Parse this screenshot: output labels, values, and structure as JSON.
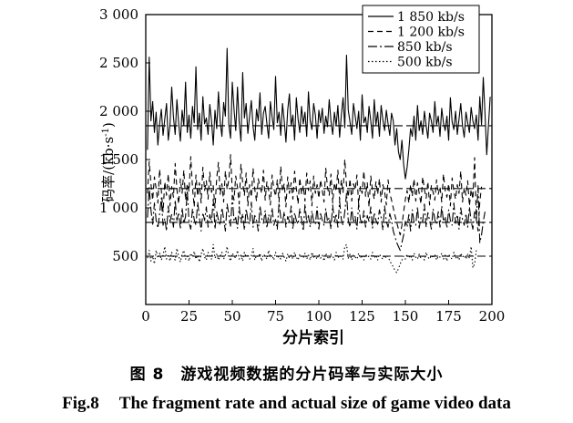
{
  "chart_data": {
    "type": "line",
    "xlabel": "分片索引",
    "ylabel": "码率/(kb·s",
    "ylabel_sup": "-1",
    "ylabel_close": ")",
    "xlim": [
      0,
      200
    ],
    "ylim": [
      0,
      3000
    ],
    "xticks": [
      0,
      25,
      50,
      75,
      100,
      125,
      150,
      175,
      200
    ],
    "yticks": [
      500,
      1000,
      1500,
      2000,
      2500,
      3000
    ],
    "ytick_labels": [
      "500",
      "1 000",
      "1 500",
      "2 000",
      "2 500",
      "3 000"
    ],
    "grid": false,
    "legend_position": "top-right",
    "series": [
      {
        "name": "1 850 kb/s",
        "dash": "solid",
        "mean": 1850,
        "amp": 300,
        "values": [
          1600,
          2560,
          1900,
          2100,
          1780,
          1990,
          1650,
          1870,
          2020,
          1750,
          1920,
          2080,
          1700,
          1860,
          2250,
          1940,
          1760,
          2120,
          1880,
          1690,
          2010,
          1850,
          2300,
          1780,
          1960,
          1720,
          2050,
          1880,
          2460,
          1810,
          1980,
          1700,
          2150,
          1870,
          1930,
          1760,
          2070,
          1900,
          1650,
          2010,
          1820,
          2200,
          1890,
          1740,
          2090,
          1950,
          2650,
          1860,
          1720,
          2300,
          2020,
          1800,
          2250,
          1880,
          1690,
          2400,
          1930,
          2080,
          1770,
          1950,
          2110,
          1840,
          1700,
          2020,
          1900,
          2190,
          1760,
          1980,
          2050,
          1870,
          1720,
          2100,
          1940,
          1810,
          2360,
          1880,
          1990,
          1750,
          2080,
          1900,
          1680,
          2010,
          2180,
          1850,
          1960,
          1700,
          2140,
          1920,
          1780,
          2050,
          1870,
          1990,
          1740,
          2200,
          1900,
          1810,
          2080,
          1960,
          1720,
          2010,
          1880,
          2030,
          1770,
          1950,
          1840,
          2120,
          1900,
          1760,
          1990,
          1850,
          2060,
          1730,
          1960,
          2140,
          1830,
          2580,
          2010,
          1890,
          1760,
          2080,
          1950,
          1820,
          2000,
          1700,
          2170,
          1880,
          1940,
          1780,
          2050,
          1900,
          1720,
          2120,
          1860,
          1990,
          1740,
          2060,
          1910,
          1800,
          2010,
          1870,
          1750,
          1980,
          1900,
          1650,
          1820,
          1580,
          1500,
          1700,
          1450,
          1300,
          1420,
          1600,
          1820,
          1740,
          1950,
          1700,
          2060,
          1800,
          1900,
          1760,
          2000,
          1850,
          1720,
          1980,
          1900,
          1780,
          2100,
          1860,
          1950,
          1740,
          2030,
          1880,
          1800,
          1950,
          1700,
          2140,
          1890,
          1810,
          2000,
          1760,
          1920,
          2080,
          1850,
          1730,
          1990,
          1880,
          1780,
          2040,
          1900,
          1820,
          1960,
          1700,
          2150,
          1860,
          2350,
          1980,
          1550,
          1850,
          2150
        ]
      },
      {
        "name": "1 200 kb/s",
        "dash": "6,4",
        "mean": 1200,
        "amp": 250,
        "values": [
          1150,
          1480,
          1250,
          1080,
          1320,
          1200,
          1050,
          1400,
          1180,
          960,
          1270,
          1130,
          1350,
          1020,
          1220,
          1110,
          1460,
          1190,
          1040,
          1300,
          1150,
          1390,
          1080,
          1250,
          1170,
          1530,
          1210,
          1010,
          1340,
          1120,
          1260,
          1050,
          1420,
          1180,
          1280,
          1090,
          1370,
          1160,
          1230,
          1000,
          1310,
          1470,
          1140,
          1250,
          1060,
          1380,
          1190,
          1290,
          1550,
          1170,
          1080,
          1330,
          1210,
          1040,
          1450,
          1260,
          1130,
          1360,
          1020,
          1240,
          1110,
          1410,
          1190,
          1070,
          1300,
          1220,
          1150,
          1390,
          1080,
          1270,
          1180,
          1030,
          1340,
          1200,
          1120,
          1290,
          1060,
          1430,
          1170,
          1250,
          1010,
          1320,
          1150,
          1260,
          1090,
          1380,
          1200,
          1040,
          1310,
          1140,
          1230,
          1070,
          1360,
          1180,
          1280,
          1020,
          1330,
          1150,
          1240,
          1100,
          1290,
          1180,
          1060,
          1410,
          1210,
          1130,
          1350,
          1050,
          1260,
          1170,
          1390,
          1080,
          1290,
          1160,
          1500,
          1230,
          1110,
          1300,
          1070,
          1250,
          1190,
          1340,
          1040,
          1220,
          1150,
          1380,
          1120,
          1260,
          1010,
          1330,
          1180,
          1090,
          1270,
          1140,
          1300,
          1060,
          1240,
          1170,
          1030,
          1290,
          1150,
          1080,
          1000,
          920,
          850,
          780,
          720,
          820,
          960,
          1090,
          1180,
          1050,
          1240,
          1120,
          1300,
          1070,
          1260,
          1150,
          1040,
          1320,
          1190,
          1100,
          1270,
          1030,
          1230,
          1160,
          1080,
          1290,
          1140,
          1220,
          1060,
          1350,
          1180,
          1110,
          1250,
          1020,
          1310,
          1170,
          1090,
          1240,
          1150,
          1380,
          1060,
          1210,
          1130,
          1280,
          1020,
          1190,
          1090,
          1520,
          880,
          760,
          1060,
          1220
        ]
      },
      {
        "name": "850 kb/s",
        "dash": "10,3,2,3",
        "mean": 850,
        "amp": 180,
        "values": [
          900,
          1210,
          980,
          830,
          1050,
          870,
          790,
          940,
          1100,
          820,
          890,
          760,
          1020,
          860,
          930,
          800,
          1080,
          870,
          950,
          780,
          1000,
          840,
          910,
          1180,
          850,
          780,
          990,
          880,
          820,
          1060,
          900,
          760,
          950,
          870,
          1010,
          800,
          930,
          850,
          1090,
          780,
          960,
          870,
          820,
          1000,
          890,
          760,
          1040,
          930,
          810,
          1130,
          860,
          900,
          790,
          1010,
          850,
          940,
          770,
          990,
          880,
          830,
          1060,
          800,
          920,
          870,
          760,
          1020,
          890,
          840,
          970,
          790,
          930,
          860,
          1000,
          820,
          880,
          780,
          1050,
          900,
          840,
          960,
          800,
          910,
          860,
          1020,
          780,
          950,
          870,
          830,
          990,
          880,
          760,
          1040,
          850,
          920,
          800,
          970,
          860,
          830,
          1010,
          780,
          940,
          870,
          820,
          990,
          860,
          900,
          780,
          1030,
          850,
          940,
          800,
          1070,
          880,
          820,
          960,
          1150,
          870,
          800,
          1000,
          850,
          910,
          780,
          1040,
          880,
          830,
          970,
          800,
          920,
          860,
          1010,
          790,
          950,
          870,
          830,
          980,
          900,
          770,
          1020,
          860,
          800,
          940,
          870,
          760,
          700,
          640,
          600,
          560,
          640,
          720,
          860,
          800,
          930,
          760,
          980,
          850,
          820,
          1010,
          790,
          900,
          860,
          1040,
          800,
          950,
          870,
          780,
          990,
          880,
          830,
          960,
          800,
          1020,
          860,
          910,
          790,
          980,
          870,
          820,
          1050,
          840,
          930,
          780,
          1000,
          880,
          820,
          940,
          800,
          1010,
          860,
          780,
          960,
          870,
          1230,
          640,
          720,
          860,
          960
        ]
      },
      {
        "name": "500 kb/s",
        "dash": "1.5,2.5",
        "mean": 500,
        "amp": 100,
        "values": [
          480,
          560,
          450,
          500,
          420,
          560,
          480,
          530,
          460,
          510,
          600,
          470,
          520,
          450,
          540,
          490,
          460,
          580,
          500,
          440,
          520,
          560,
          470,
          500,
          450,
          530,
          490,
          550,
          470,
          510,
          440,
          520,
          580,
          490,
          460,
          540,
          500,
          470,
          620,
          480,
          520,
          460,
          500,
          540,
          470,
          510,
          600,
          490,
          450,
          530,
          500,
          480,
          560,
          470,
          510,
          450,
          540,
          490,
          520,
          470,
          500,
          580,
          460,
          510,
          490,
          530,
          450,
          520,
          500,
          470,
          560,
          490,
          510,
          460,
          540,
          480,
          500,
          470,
          530,
          490,
          450,
          520,
          480,
          510,
          470,
          540,
          490,
          460,
          520,
          500,
          480,
          530,
          470,
          510,
          460,
          540,
          490,
          500,
          470,
          520,
          480,
          510,
          450,
          530,
          490,
          470,
          520,
          500,
          460,
          540,
          480,
          510,
          490,
          470,
          600,
          620,
          480,
          520,
          460,
          510,
          490,
          470,
          530,
          480,
          510,
          460,
          520,
          490,
          500,
          470,
          540,
          480,
          510,
          460,
          520,
          490,
          470,
          510,
          480,
          500,
          450,
          420,
          390,
          350,
          330,
          370,
          420,
          460,
          500,
          470,
          520,
          480,
          510,
          460,
          530,
          490,
          470,
          520,
          480,
          500,
          460,
          540,
          490,
          470,
          510,
          480,
          520,
          460,
          500,
          490,
          530,
          470,
          510,
          450,
          520,
          490,
          470,
          540,
          480,
          500,
          460,
          530,
          490,
          510,
          470,
          520,
          480,
          600,
          380,
          420,
          560
        ]
      }
    ]
  },
  "caption": {
    "cn_number": "图 8",
    "cn_text": "游戏视频数据的分片码率与实际大小",
    "en_number": "Fig.8",
    "en_text": "The fragment rate and actual size of game video data"
  }
}
